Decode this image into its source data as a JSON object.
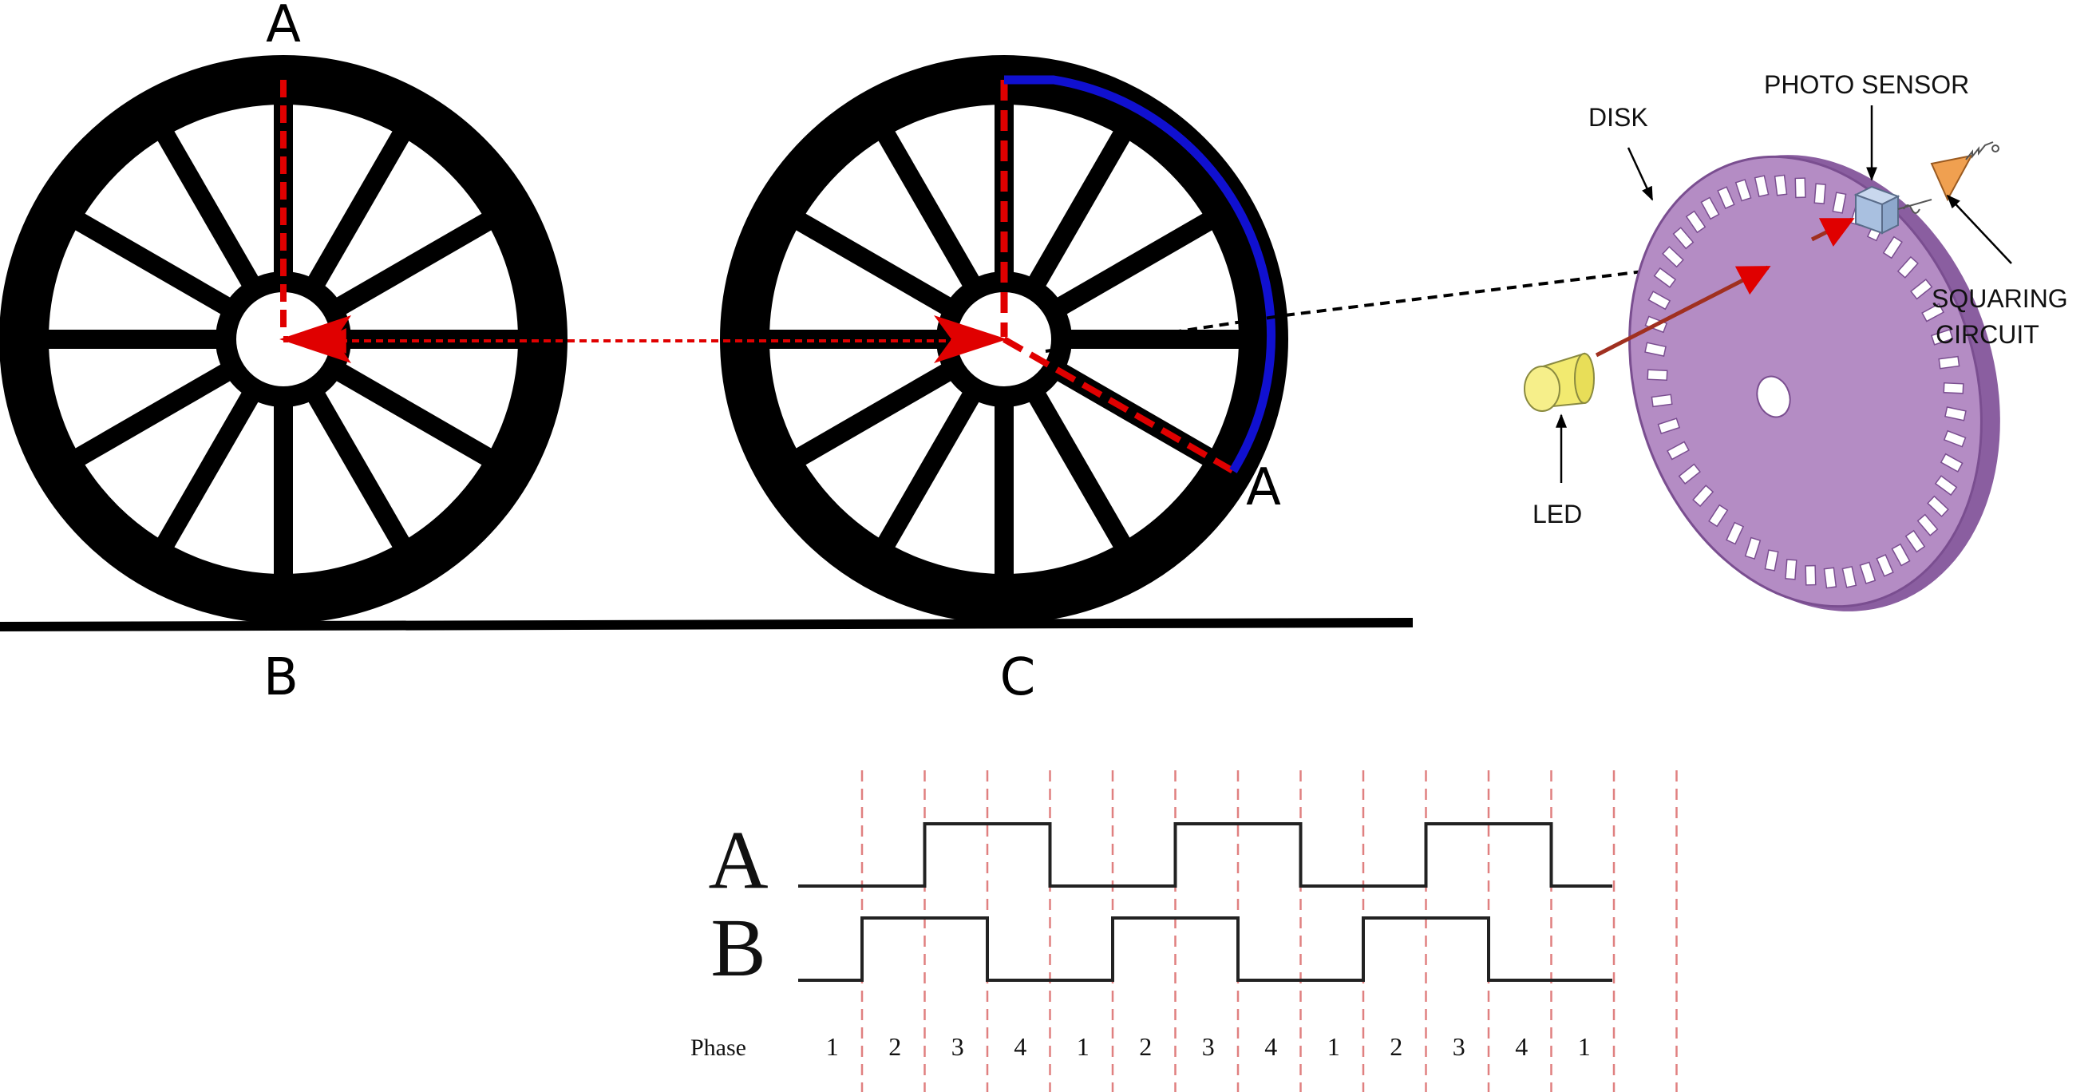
{
  "wheel_labels": {
    "left_top": "A",
    "left_bottom": "B",
    "right_rim": "A",
    "right_bottom": "C"
  },
  "encoder_labels": {
    "disk": "DISK",
    "photo_sensor": "PHOTO SENSOR",
    "squaring_line1": "SQUARING",
    "squaring_line2": "CIRCUIT",
    "led": "LED"
  },
  "waveform": {
    "channel_a": "A",
    "channel_b": "B",
    "phase_label": "Phase",
    "phases": [
      "1",
      "2",
      "3",
      "4",
      "1",
      "2",
      "3",
      "4",
      "1",
      "2",
      "3",
      "4",
      "1"
    ]
  },
  "colors": {
    "wheel": "#000000",
    "radius_dash": "#e00000",
    "arc": "#1010d0",
    "disk_fill": "#b48cc4",
    "disk_edge": "#8a5ea0",
    "led": "#f2ea70",
    "sensor": "#a9c0e0",
    "amplifier": "#f0a050",
    "beam": "#a03020",
    "phase_grid": "#e08080"
  },
  "icons": [
    "wheel-icon",
    "encoder-disk-icon",
    "led-icon",
    "photo-sensor-icon",
    "amplifier-icon"
  ]
}
